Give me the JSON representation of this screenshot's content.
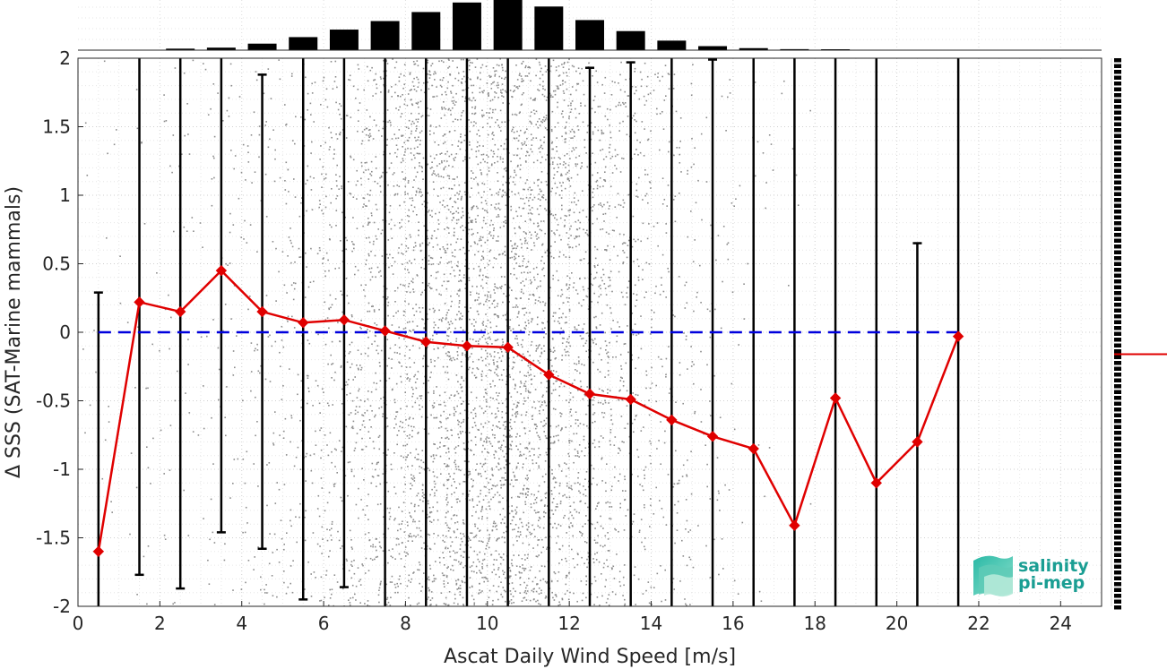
{
  "chart_data": {
    "type": "scatter",
    "xlabel": "Ascat Daily Wind Speed [m/s]",
    "ylabel": "Δ SSS (SAT-Marine mammals)",
    "xlim": [
      0,
      25
    ],
    "ylim": [
      -2,
      2
    ],
    "xticks": [
      0,
      2,
      4,
      6,
      8,
      10,
      12,
      14,
      16,
      18,
      20,
      22,
      24
    ],
    "yticks": [
      2,
      1.5,
      1,
      0.5,
      0,
      -0.5,
      -1,
      -1.5,
      -2
    ],
    "grid": true,
    "reference_line": {
      "y": 0,
      "style": "dashed",
      "color": "#0000dd"
    },
    "bin_centers": [
      0.5,
      1.5,
      2.5,
      3.5,
      4.5,
      5.5,
      6.5,
      7.5,
      8.5,
      9.5,
      10.5,
      11.5,
      12.5,
      13.5,
      14.5,
      15.5,
      16.5,
      17.5,
      18.5,
      19.5,
      20.5,
      21.5
    ],
    "series": [
      {
        "type": "line",
        "color": "#e00000",
        "x": [
          0.5,
          1.5,
          2.5,
          3.5,
          4.5,
          5.5,
          6.5,
          7.5,
          8.5,
          9.5,
          10.5,
          11.5,
          12.5,
          13.5,
          14.5,
          15.5,
          16.5,
          17.5,
          18.5,
          19.5,
          20.5,
          21.5
        ],
        "y": [
          -1.6,
          0.22,
          0.15,
          0.45,
          0.15,
          0.07,
          0.09,
          0.01,
          -0.07,
          -0.1,
          -0.11,
          -0.31,
          -0.45,
          -0.49,
          -0.64,
          -0.76,
          -0.85,
          -1.41,
          -0.48,
          -1.1,
          -0.8,
          -0.03
        ]
      }
    ],
    "error_bars": {
      "color": "#000000",
      "x": [
        0.5,
        1.5,
        2.5,
        3.5,
        4.5,
        5.5,
        6.5,
        7.5,
        8.5,
        9.5,
        10.5,
        11.5,
        12.5,
        13.5,
        14.5,
        15.5,
        16.5,
        17.5,
        18.5,
        19.5,
        20.5,
        21.5
      ],
      "upper": [
        0.29,
        2,
        2,
        2,
        1.88,
        2,
        2,
        2,
        2,
        2,
        2,
        2,
        1.93,
        1.97,
        2,
        1.99,
        2,
        2,
        2,
        2,
        0.65,
        2
      ],
      "lower": [
        -2,
        -1.77,
        -1.87,
        -1.46,
        -1.58,
        -1.95,
        -1.86,
        -2,
        -2,
        -2,
        -2,
        -2,
        -2,
        -2,
        -2,
        -2,
        -2,
        -2,
        -2,
        -2,
        -2,
        -2
      ]
    },
    "histogram_top": {
      "bin_centers": [
        2.5,
        3.5,
        4.5,
        5.5,
        6.5,
        7.5,
        8.5,
        9.5,
        10.5,
        11.5,
        12.5,
        13.5,
        14.5,
        15.5,
        16.5,
        17.5,
        18.5
      ],
      "relative_heights": [
        0.03,
        0.05,
        0.13,
        0.26,
        0.41,
        0.58,
        0.76,
        0.95,
        1.0,
        0.87,
        0.6,
        0.38,
        0.19,
        0.08,
        0.04,
        0.02,
        0.01
      ]
    },
    "scatter_density": {
      "color": "#8c8c8c",
      "bin_centers": [
        0.5,
        1.5,
        2.5,
        3.5,
        4.5,
        5.5,
        6.5,
        7.5,
        8.5,
        9.5,
        10.5,
        11.5,
        12.5,
        13.5,
        14.5,
        15.5,
        16.5,
        17.5
      ],
      "relative_density": [
        0.02,
        0.03,
        0.05,
        0.08,
        0.13,
        0.22,
        0.36,
        0.55,
        0.78,
        0.95,
        1.0,
        0.85,
        0.6,
        0.36,
        0.18,
        0.08,
        0.03,
        0.01
      ]
    },
    "side_marker": {
      "y": -0.16,
      "color": "#e00000"
    }
  },
  "logo": {
    "line1": "salinity",
    "line2": "pi-mep"
  }
}
